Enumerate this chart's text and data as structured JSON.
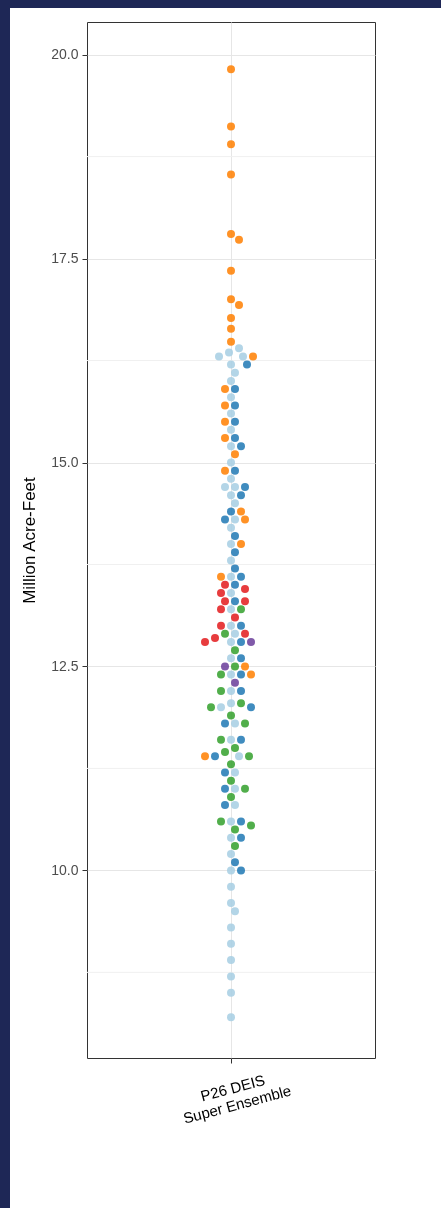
{
  "chart_data": {
    "type": "scatter",
    "ylabel": "Million Acre-Feet",
    "categories": [
      "P26 DEIS\nSuper Ensemble"
    ],
    "ylim": [
      7.7,
      20.4
    ],
    "yticks": [
      {
        "value": 10,
        "label": "10.0"
      },
      {
        "value": 12.5,
        "label": "12.5"
      },
      {
        "value": 15,
        "label": "15.0"
      },
      {
        "value": 17.5,
        "label": "17.5"
      },
      {
        "value": 20,
        "label": "20.0"
      }
    ],
    "grid": true,
    "legend": false,
    "marker": "circle",
    "series": [
      {
        "color": "#a6cee3",
        "x": [
          "P26 DEIS\nSuper Ensemble",
          "P26 DEIS\nSuper Ensemble",
          "P26 DEIS\nSuper Ensemble",
          "P26 DEIS\nSuper Ensemble",
          "P26 DEIS\nSuper Ensemble",
          "P26 DEIS\nSuper Ensemble",
          "P26 DEIS\nSuper Ensemble",
          "P26 DEIS\nSuper Ensemble",
          "P26 DEIS\nSuper Ensemble",
          "P26 DEIS\nSuper Ensemble",
          "P26 DEIS\nSuper Ensemble",
          "P26 DEIS\nSuper Ensemble",
          "P26 DEIS\nSuper Ensemble",
          "P26 DEIS\nSuper Ensemble",
          "P26 DEIS\nSuper Ensemble",
          "P26 DEIS\nSuper Ensemble",
          "P26 DEIS\nSuper Ensemble",
          "P26 DEIS\nSuper Ensemble",
          "P26 DEIS\nSuper Ensemble",
          "P26 DEIS\nSuper Ensemble",
          "P26 DEIS\nSuper Ensemble",
          "P26 DEIS\nSuper Ensemble",
          "P26 DEIS\nSuper Ensemble",
          "P26 DEIS\nSuper Ensemble",
          "P26 DEIS\nSuper Ensemble",
          "P26 DEIS\nSuper Ensemble",
          "P26 DEIS\nSuper Ensemble",
          "P26 DEIS\nSuper Ensemble",
          "P26 DEIS\nSuper Ensemble",
          "P26 DEIS\nSuper Ensemble",
          "P26 DEIS\nSuper Ensemble",
          "P26 DEIS\nSuper Ensemble",
          "P26 DEIS\nSuper Ensemble",
          "P26 DEIS\nSuper Ensemble",
          "P26 DEIS\nSuper Ensemble",
          "P26 DEIS\nSuper Ensemble",
          "P26 DEIS\nSuper Ensemble",
          "P26 DEIS\nSuper Ensemble",
          "P26 DEIS\nSuper Ensemble",
          "P26 DEIS\nSuper Ensemble",
          "P26 DEIS\nSuper Ensemble",
          "P26 DEIS\nSuper Ensemble",
          "P26 DEIS\nSuper Ensemble",
          "P26 DEIS\nSuper Ensemble",
          "P26 DEIS\nSuper Ensemble",
          "P26 DEIS\nSuper Ensemble",
          "P26 DEIS\nSuper Ensemble",
          "P26 DEIS\nSuper Ensemble",
          "P26 DEIS\nSuper Ensemble",
          "P26 DEIS\nSuper Ensemble",
          "P26 DEIS\nSuper Ensemble"
        ],
        "values": [
          16.4,
          16.35,
          16.3,
          16.3,
          16.2,
          16.1,
          16.0,
          15.8,
          15.6,
          15.4,
          15.2,
          15.0,
          14.8,
          14.7,
          14.7,
          14.6,
          14.5,
          14.3,
          14.2,
          14.0,
          13.8,
          13.6,
          13.4,
          13.2,
          13.0,
          12.9,
          12.8,
          12.6,
          12.4,
          12.2,
          12.05,
          12.0,
          11.8,
          11.6,
          11.4,
          11.2,
          11.0,
          10.8,
          10.6,
          10.4,
          10.2,
          10.0,
          9.8,
          9.6,
          9.5,
          9.3,
          9.1,
          8.9,
          8.7,
          8.5,
          8.2
        ]
      },
      {
        "color": "#1f78b4",
        "x": [
          "P26 DEIS\nSuper Ensemble",
          "P26 DEIS\nSuper Ensemble",
          "P26 DEIS\nSuper Ensemble",
          "P26 DEIS\nSuper Ensemble",
          "P26 DEIS\nSuper Ensemble",
          "P26 DEIS\nSuper Ensemble",
          "P26 DEIS\nSuper Ensemble",
          "P26 DEIS\nSuper Ensemble",
          "P26 DEIS\nSuper Ensemble",
          "P26 DEIS\nSuper Ensemble",
          "P26 DEIS\nSuper Ensemble",
          "P26 DEIS\nSuper Ensemble",
          "P26 DEIS\nSuper Ensemble",
          "P26 DEIS\nSuper Ensemble",
          "P26 DEIS\nSuper Ensemble",
          "P26 DEIS\nSuper Ensemble",
          "P26 DEIS\nSuper Ensemble",
          "P26 DEIS\nSuper Ensemble",
          "P26 DEIS\nSuper Ensemble",
          "P26 DEIS\nSuper Ensemble",
          "P26 DEIS\nSuper Ensemble",
          "P26 DEIS\nSuper Ensemble",
          "P26 DEIS\nSuper Ensemble",
          "P26 DEIS\nSuper Ensemble",
          "P26 DEIS\nSuper Ensemble",
          "P26 DEIS\nSuper Ensemble",
          "P26 DEIS\nSuper Ensemble",
          "P26 DEIS\nSuper Ensemble",
          "P26 DEIS\nSuper Ensemble",
          "P26 DEIS\nSuper Ensemble",
          "P26 DEIS\nSuper Ensemble",
          "P26 DEIS\nSuper Ensemble",
          "P26 DEIS\nSuper Ensemble"
        ],
        "values": [
          16.2,
          15.9,
          15.7,
          15.5,
          15.3,
          15.2,
          14.9,
          14.7,
          14.6,
          14.4,
          14.3,
          14.1,
          13.9,
          13.7,
          13.6,
          13.5,
          13.3,
          13.0,
          12.8,
          12.6,
          12.4,
          12.2,
          12.0,
          11.8,
          11.6,
          11.4,
          11.2,
          11.0,
          10.8,
          10.6,
          10.4,
          10.1,
          10.0
        ]
      },
      {
        "color": "#33a02c",
        "x": [
          "P26 DEIS\nSuper Ensemble",
          "P26 DEIS\nSuper Ensemble",
          "P26 DEIS\nSuper Ensemble",
          "P26 DEIS\nSuper Ensemble",
          "P26 DEIS\nSuper Ensemble",
          "P26 DEIS\nSuper Ensemble",
          "P26 DEIS\nSuper Ensemble",
          "P26 DEIS\nSuper Ensemble",
          "P26 DEIS\nSuper Ensemble",
          "P26 DEIS\nSuper Ensemble",
          "P26 DEIS\nSuper Ensemble",
          "P26 DEIS\nSuper Ensemble",
          "P26 DEIS\nSuper Ensemble",
          "P26 DEIS\nSuper Ensemble",
          "P26 DEIS\nSuper Ensemble",
          "P26 DEIS\nSuper Ensemble",
          "P26 DEIS\nSuper Ensemble",
          "P26 DEIS\nSuper Ensemble",
          "P26 DEIS\nSuper Ensemble",
          "P26 DEIS\nSuper Ensemble",
          "P26 DEIS\nSuper Ensemble",
          "P26 DEIS\nSuper Ensemble"
        ],
        "values": [
          13.2,
          12.9,
          12.7,
          12.5,
          12.4,
          12.2,
          12.05,
          12.0,
          11.9,
          11.8,
          11.6,
          11.5,
          11.45,
          11.4,
          11.3,
          11.1,
          11.0,
          10.9,
          10.6,
          10.55,
          10.5,
          10.3
        ]
      },
      {
        "color": "#6a3d9a",
        "x": [
          "P26 DEIS\nSuper Ensemble",
          "P26 DEIS\nSuper Ensemble",
          "P26 DEIS\nSuper Ensemble"
        ],
        "values": [
          12.8,
          12.5,
          12.3
        ]
      },
      {
        "color": "#e31a1c",
        "x": [
          "P26 DEIS\nSuper Ensemble",
          "P26 DEIS\nSuper Ensemble",
          "P26 DEIS\nSuper Ensemble",
          "P26 DEIS\nSuper Ensemble",
          "P26 DEIS\nSuper Ensemble",
          "P26 DEIS\nSuper Ensemble",
          "P26 DEIS\nSuper Ensemble",
          "P26 DEIS\nSuper Ensemble",
          "P26 DEIS\nSuper Ensemble",
          "P26 DEIS\nSuper Ensemble",
          "P26 DEIS\nSuper Ensemble"
        ],
        "values": [
          13.5,
          13.45,
          13.4,
          13.3,
          13.3,
          13.2,
          13.1,
          13.0,
          12.9,
          12.85,
          12.8
        ]
      },
      {
        "color": "#ff7f00",
        "x": [
          "P26 DEIS\nSuper Ensemble",
          "P26 DEIS\nSuper Ensemble",
          "P26 DEIS\nSuper Ensemble",
          "P26 DEIS\nSuper Ensemble",
          "P26 DEIS\nSuper Ensemble",
          "P26 DEIS\nSuper Ensemble",
          "P26 DEIS\nSuper Ensemble",
          "P26 DEIS\nSuper Ensemble",
          "P26 DEIS\nSuper Ensemble",
          "P26 DEIS\nSuper Ensemble",
          "P26 DEIS\nSuper Ensemble",
          "P26 DEIS\nSuper Ensemble",
          "P26 DEIS\nSuper Ensemble",
          "P26 DEIS\nSuper Ensemble",
          "P26 DEIS\nSuper Ensemble",
          "P26 DEIS\nSuper Ensemble",
          "P26 DEIS\nSuper Ensemble",
          "P26 DEIS\nSuper Ensemble",
          "P26 DEIS\nSuper Ensemble",
          "P26 DEIS\nSuper Ensemble",
          "P26 DEIS\nSuper Ensemble",
          "P26 DEIS\nSuper Ensemble",
          "P26 DEIS\nSuper Ensemble",
          "P26 DEIS\nSuper Ensemble",
          "P26 DEIS\nSuper Ensemble",
          "P26 DEIS\nSuper Ensemble"
        ],
        "values": [
          19.82,
          19.12,
          18.9,
          18.53,
          17.8,
          17.73,
          17.35,
          17.0,
          16.93,
          16.77,
          16.64,
          16.48,
          16.3,
          15.9,
          15.7,
          15.5,
          15.3,
          15.1,
          14.9,
          14.4,
          14.3,
          14.0,
          13.6,
          12.5,
          12.4,
          11.4
        ]
      }
    ]
  }
}
